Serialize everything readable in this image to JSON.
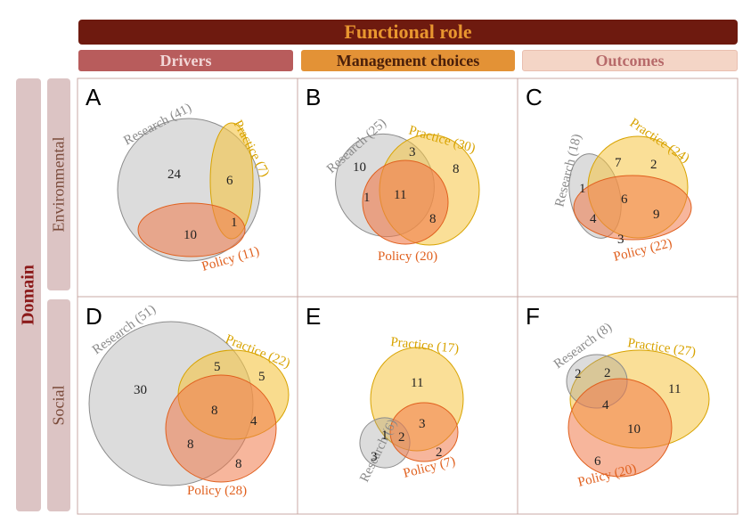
{
  "header": {
    "title": "Functional role",
    "columns": [
      "Drivers",
      "Management choices",
      "Outcomes"
    ]
  },
  "side": {
    "title": "Domain",
    "rows": [
      "Environmental",
      "Social"
    ]
  },
  "colors": {
    "research_fill": "#9b9b9b",
    "research_label": "#8a8a8a",
    "practice_fill": "#f5c542",
    "practice_label": "#d8a300",
    "policy_fill": "#f07a4a",
    "policy_label": "#e0601e",
    "header_dark": "#6e1a0f",
    "header_text": "#e8962f",
    "drivers_bg": "#b85c5c",
    "drivers_text": "#f2d7d7",
    "mgmt_bg": "#e39236",
    "mgmt_text": "#4a1f0a",
    "outcomes_bg": "#f4d5c6",
    "outcomes_text": "#b76a6a",
    "domain_bg": "#dcc4c4",
    "domain_text": "#8b1a1a",
    "row_text": "#7a4a3a"
  },
  "panels": [
    {
      "letter": "A",
      "research": "Research (41)",
      "practice": "Practice (7)",
      "policy": "Policy (11)",
      "counts": [
        "24",
        "6",
        "1",
        "10"
      ]
    },
    {
      "letter": "B",
      "research": "Research (25)",
      "practice": "Practice (30)",
      "policy": "Policy (20)",
      "counts": [
        "10",
        "3",
        "8",
        "1",
        "11",
        "8"
      ]
    },
    {
      "letter": "C",
      "research": "Research (18)",
      "practice": "Practice (24)",
      "policy": "Policy (22)",
      "counts": [
        "7",
        "2",
        "1",
        "6",
        "4",
        "9",
        "3"
      ]
    },
    {
      "letter": "D",
      "research": "Research (51)",
      "practice": "Practice (22)",
      "policy": "Policy (28)",
      "counts": [
        "30",
        "5",
        "5",
        "8",
        "4",
        "8",
        "8"
      ]
    },
    {
      "letter": "E",
      "research": "Research (6)",
      "practice": "Practice (17)",
      "policy": "Policy (7)",
      "counts": [
        "11",
        "1",
        "2",
        "3",
        "3",
        "2"
      ]
    },
    {
      "letter": "F",
      "research": "Research (8)",
      "practice": "Practice (27)",
      "policy": "Policy (20)",
      "counts": [
        "2",
        "2",
        "11",
        "4",
        "10",
        "6"
      ]
    }
  ]
}
